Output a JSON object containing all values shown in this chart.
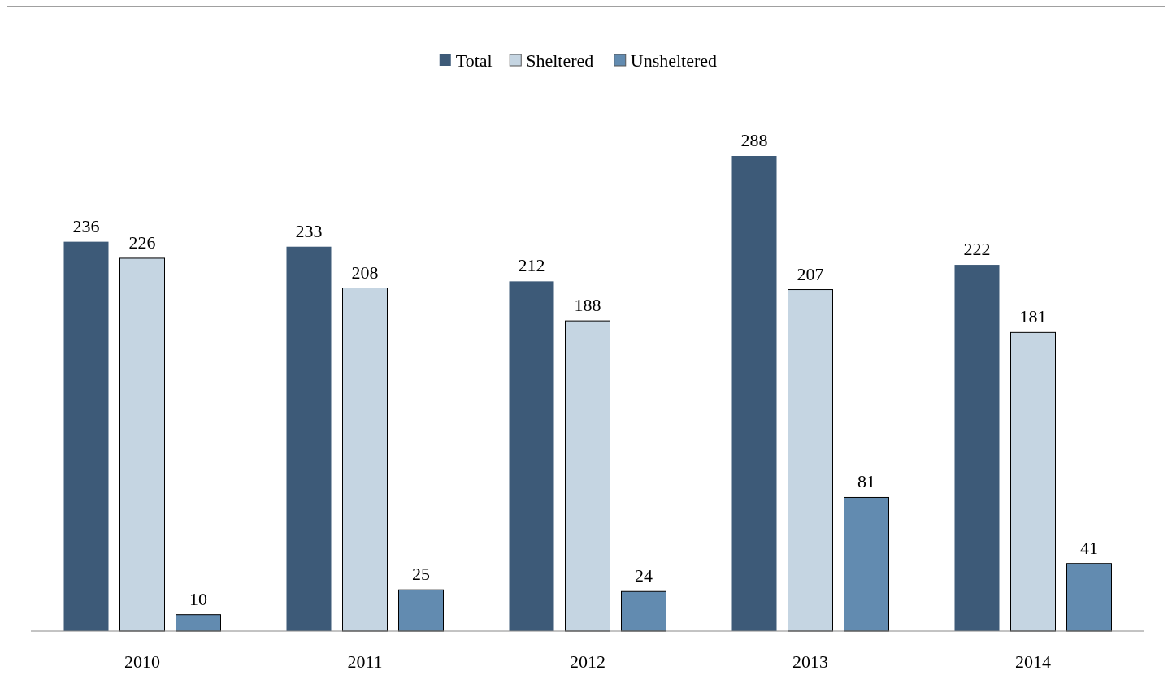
{
  "chart_data": {
    "type": "bar",
    "categories": [
      "2010",
      "2011",
      "2012",
      "2013",
      "2014"
    ],
    "series": [
      {
        "name": "Total",
        "color": "#3d5a78",
        "values": [
          236,
          233,
          212,
          288,
          222
        ]
      },
      {
        "name": "Sheltered",
        "color": "#c5d5e2",
        "values": [
          226,
          208,
          188,
          207,
          181
        ]
      },
      {
        "name": "Unsheltered",
        "color": "#628bb0",
        "values": [
          10,
          25,
          24,
          81,
          41
        ]
      }
    ],
    "data_labels": true,
    "legend": "top"
  }
}
